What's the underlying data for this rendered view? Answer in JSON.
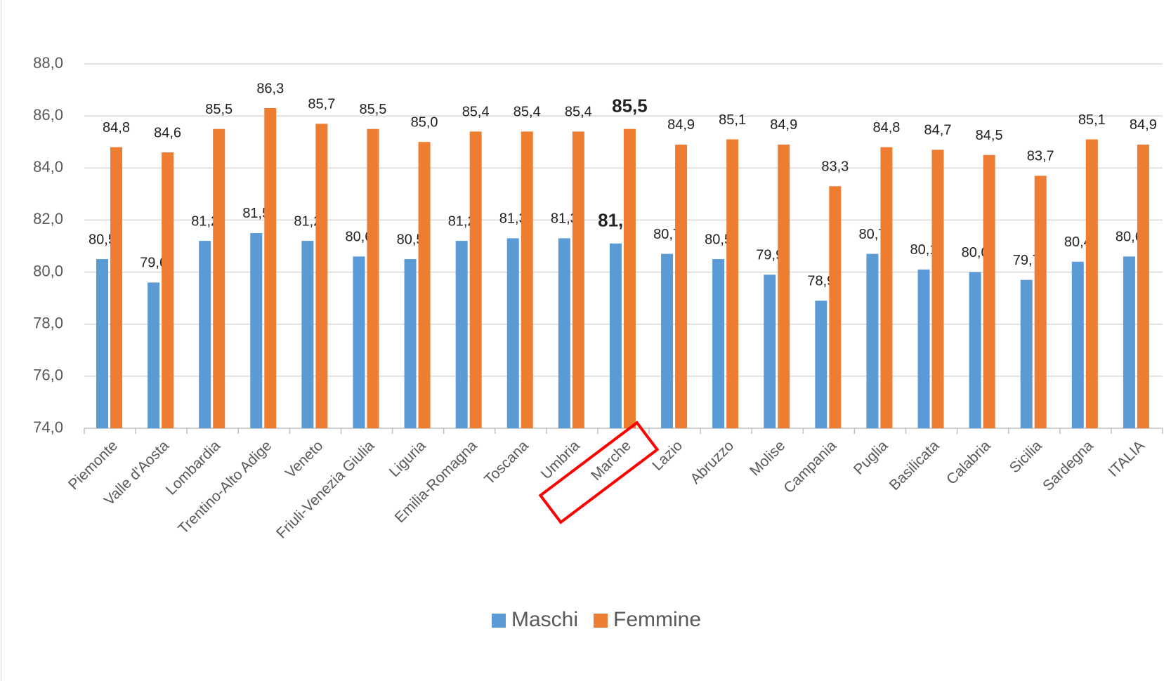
{
  "chart_data": {
    "type": "bar",
    "categories": [
      "Piemonte",
      "Valle d'Aosta",
      "Lombardia",
      "Trentino-Alto Adige",
      "Veneto",
      "Friuli-Venezia Giulia",
      "Liguria",
      "Emilia-Romagna",
      "Toscana",
      "Umbria",
      "Marche",
      "Lazio",
      "Abruzzo",
      "Molise",
      "Campania",
      "Puglia",
      "Basilicata",
      "Calabria",
      "Sicilia",
      "Sardegna",
      "ITALIA"
    ],
    "series": [
      {
        "name": "Maschi",
        "color": "#5b9bd5",
        "values": [
          80.5,
          79.6,
          81.2,
          81.5,
          81.2,
          80.6,
          80.5,
          81.2,
          81.3,
          81.3,
          81.1,
          80.7,
          80.5,
          79.9,
          78.9,
          80.7,
          80.1,
          80.0,
          79.7,
          80.4,
          80.6
        ],
        "value_labels": [
          "80,5",
          "79,6",
          "81,2",
          "81,5",
          "81,2",
          "80,6",
          "80,5",
          "81,2",
          "81,3",
          "81,3",
          "81,1",
          "80,7",
          "80,5",
          "79,9",
          "78,9",
          "80,7",
          "80,1",
          "80,0",
          "79,7",
          "80,4",
          "80,6"
        ]
      },
      {
        "name": "Femmine",
        "color": "#ed7d31",
        "values": [
          84.8,
          84.6,
          85.5,
          86.3,
          85.7,
          85.5,
          85.0,
          85.4,
          85.4,
          85.4,
          85.5,
          84.9,
          85.1,
          84.9,
          83.3,
          84.8,
          84.7,
          84.5,
          83.7,
          85.1,
          84.9
        ],
        "value_labels": [
          "84,8",
          "84,6",
          "85,5",
          "86,3",
          "85,7",
          "85,5",
          "85,0",
          "85,4",
          "85,4",
          "85,4",
          "85,5",
          "84,9",
          "85,1",
          "84,9",
          "83,3",
          "84,8",
          "84,7",
          "84,5",
          "83,7",
          "85,1",
          "84,9"
        ]
      }
    ],
    "ylim": [
      74,
      88
    ],
    "yticks": [
      {
        "value": 74,
        "label": "74,0"
      },
      {
        "value": 76,
        "label": "76,0"
      },
      {
        "value": 78,
        "label": "78,0"
      },
      {
        "value": 80,
        "label": "80,0"
      },
      {
        "value": 82,
        "label": "82,0"
      },
      {
        "value": 84,
        "label": "84,0"
      },
      {
        "value": 86,
        "label": "86,0"
      },
      {
        "value": 88,
        "label": "88,0"
      }
    ],
    "grid": true,
    "legend": "bottom",
    "highlight": "Marche",
    "highlight_color": "#ff0000"
  }
}
